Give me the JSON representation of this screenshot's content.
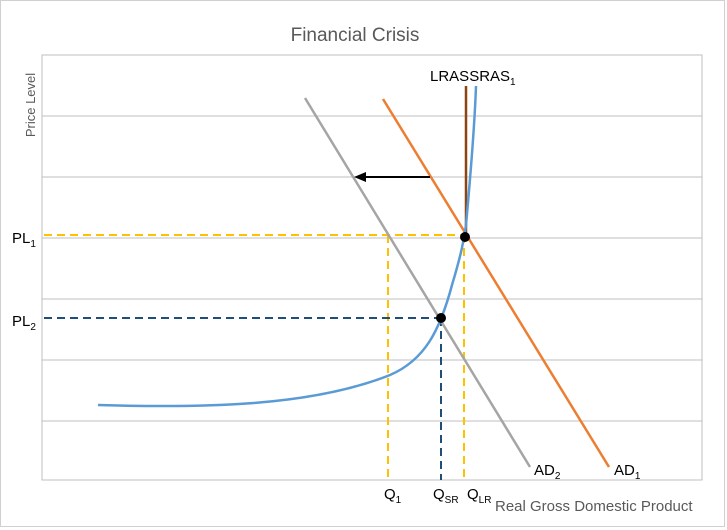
{
  "chart_data": {
    "type": "line",
    "title": "Financial Crisis",
    "xlabel": "Real Gross Domestic Product",
    "ylabel": "Price Level",
    "grid": true,
    "colors": {
      "LRAS": "#8B4513",
      "SRAS": "#5B9BD5",
      "AD1": "#ED7D31",
      "AD2": "#A5A5A5",
      "PL1_guides": "#FFC000",
      "PL2_guides": "#1F4E79",
      "arrow": "#000000"
    },
    "curves": {
      "LRAS": {
        "main": "LRAS",
        "sub": ""
      },
      "SRAS": {
        "main": "SRAS",
        "sub": "1"
      },
      "AD1": {
        "main": "AD",
        "sub": "1"
      },
      "AD2": {
        "main": "AD",
        "sub": "2"
      }
    },
    "price_levels": [
      {
        "main": "PL",
        "sub": "1"
      },
      {
        "main": "PL",
        "sub": "2"
      }
    ],
    "quantities": [
      {
        "main": "Q",
        "sub": "1"
      },
      {
        "main": "Q",
        "sub": "SR"
      },
      {
        "main": "Q",
        "sub": "LR"
      }
    ],
    "annotations": [
      {
        "type": "arrow",
        "meaning": "shift from AD1 to AD2 (leftward)"
      },
      {
        "type": "point",
        "meaning": "equilibrium at PL1, QLR"
      },
      {
        "type": "point",
        "meaning": "equilibrium at PL2, QSR"
      }
    ]
  }
}
